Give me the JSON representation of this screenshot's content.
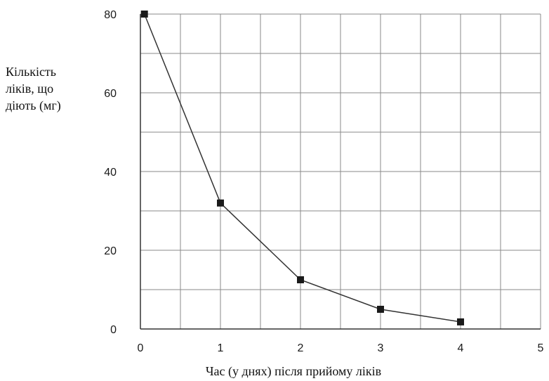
{
  "chart_data": {
    "type": "line",
    "title": "",
    "ylabel": [
      "Кількість",
      "ліків, що",
      "діють (мг)"
    ],
    "xlabel": "Час (у днях) після прийому ліків",
    "xlim": [
      0,
      5
    ],
    "ylim": [
      0,
      80
    ],
    "x_ticks": [
      "0",
      "1",
      "2",
      "3",
      "4",
      "5"
    ],
    "y_ticks": [
      "0",
      "20",
      "40",
      "60",
      "80"
    ],
    "grid": true,
    "marker": "square",
    "series": [
      {
        "points": [
          {
            "x": 0.05,
            "y": 80
          },
          {
            "x": 1,
            "y": 32
          },
          {
            "x": 2,
            "y": 12.5
          },
          {
            "x": 3,
            "y": 5
          },
          {
            "x": 4,
            "y": 1.8
          }
        ]
      }
    ],
    "colors": {
      "line": "#333333",
      "marker": "#1a1a1a",
      "grid": "#8a8a8a",
      "axis": "#333333"
    }
  }
}
